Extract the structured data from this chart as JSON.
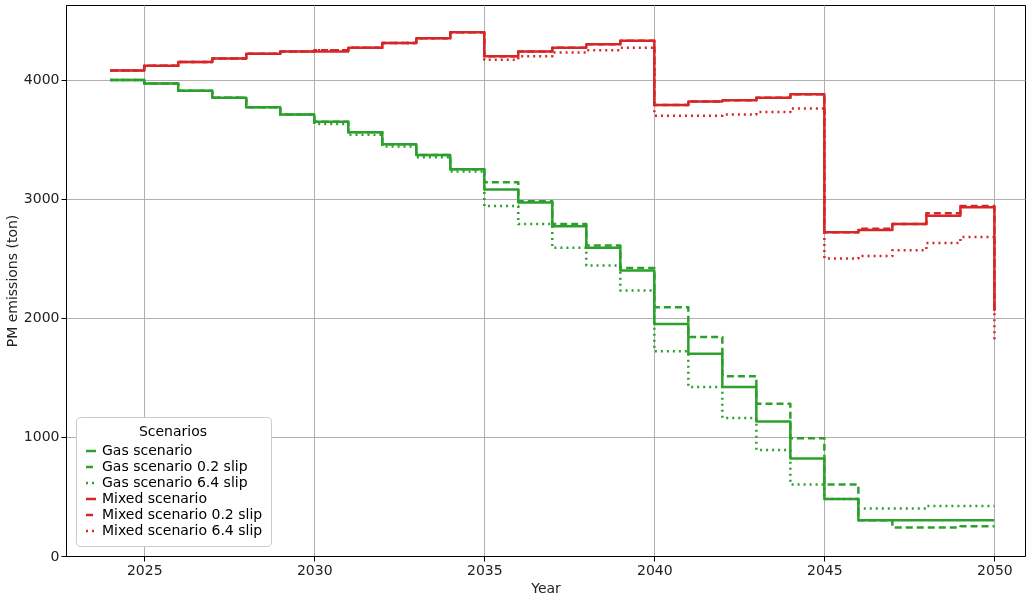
{
  "chart_data": {
    "type": "step",
    "xlabel": "Year",
    "ylabel": "PM emissions (ton)",
    "legend_title": "Scenarios",
    "x": [
      2024,
      2025,
      2026,
      2027,
      2028,
      2029,
      2030,
      2031,
      2032,
      2033,
      2034,
      2035,
      2036,
      2037,
      2038,
      2039,
      2040,
      2041,
      2042,
      2043,
      2044,
      2045,
      2046,
      2047,
      2048,
      2049,
      2050
    ],
    "series": [
      {
        "name": "Gas scenario",
        "color": "#2ca02c",
        "line_style": "solid",
        "values": [
          4000,
          3970,
          3910,
          3850,
          3770,
          3710,
          3650,
          3560,
          3460,
          3370,
          3250,
          3080,
          2970,
          2770,
          2590,
          2400,
          1950,
          1700,
          1420,
          1130,
          820,
          480,
          300,
          300,
          300,
          300,
          300
        ]
      },
      {
        "name": "Gas scenario 0.2 slip",
        "color": "#2ca02c",
        "line_style": "dashed",
        "values": [
          4000,
          3970,
          3910,
          3850,
          3770,
          3710,
          3650,
          3560,
          3460,
          3370,
          3250,
          3140,
          2980,
          2790,
          2610,
          2420,
          2090,
          1840,
          1510,
          1280,
          990,
          600,
          300,
          240,
          240,
          250,
          250
        ]
      },
      {
        "name": "Gas scenario 6.4 slip",
        "color": "#2ca02c",
        "line_style": "dotted",
        "values": [
          4000,
          3970,
          3910,
          3850,
          3770,
          3710,
          3630,
          3540,
          3440,
          3350,
          3230,
          2940,
          2790,
          2590,
          2440,
          2230,
          1720,
          1420,
          1160,
          890,
          600,
          480,
          400,
          400,
          420,
          420,
          420
        ]
      },
      {
        "name": "Mixed scenario",
        "color": "#d62728",
        "line_style": "solid",
        "values": [
          4080,
          4120,
          4150,
          4180,
          4220,
          4240,
          4240,
          4270,
          4310,
          4350,
          4400,
          4200,
          4240,
          4270,
          4300,
          4330,
          3790,
          3820,
          3830,
          3850,
          3880,
          2720,
          2740,
          2790,
          2860,
          2930,
          2060
        ]
      },
      {
        "name": "Mixed scenario 0.2 slip",
        "color": "#d62728",
        "line_style": "dashed",
        "values": [
          4080,
          4120,
          4150,
          4180,
          4220,
          4240,
          4250,
          4270,
          4310,
          4350,
          4400,
          4200,
          4240,
          4270,
          4300,
          4330,
          3790,
          3820,
          3830,
          3850,
          3880,
          2720,
          2750,
          2790,
          2880,
          2940,
          2060
        ]
      },
      {
        "name": "Mixed scenario 6.4 slip",
        "color": "#d62728",
        "line_style": "dotted",
        "values": [
          4080,
          4120,
          4150,
          4180,
          4220,
          4240,
          4250,
          4270,
          4310,
          4350,
          4400,
          4170,
          4200,
          4230,
          4250,
          4270,
          3700,
          3700,
          3710,
          3730,
          3760,
          2500,
          2520,
          2570,
          2630,
          2680,
          1820
        ]
      }
    ],
    "xlim": [
      2022.7,
      2050.9
    ],
    "ylim": [
      0,
      4630
    ],
    "xticks": [
      2025,
      2030,
      2035,
      2040,
      2045,
      2050
    ],
    "yticks": [
      0,
      1000,
      2000,
      3000,
      4000
    ],
    "grid": true,
    "legend": "bottom left"
  }
}
